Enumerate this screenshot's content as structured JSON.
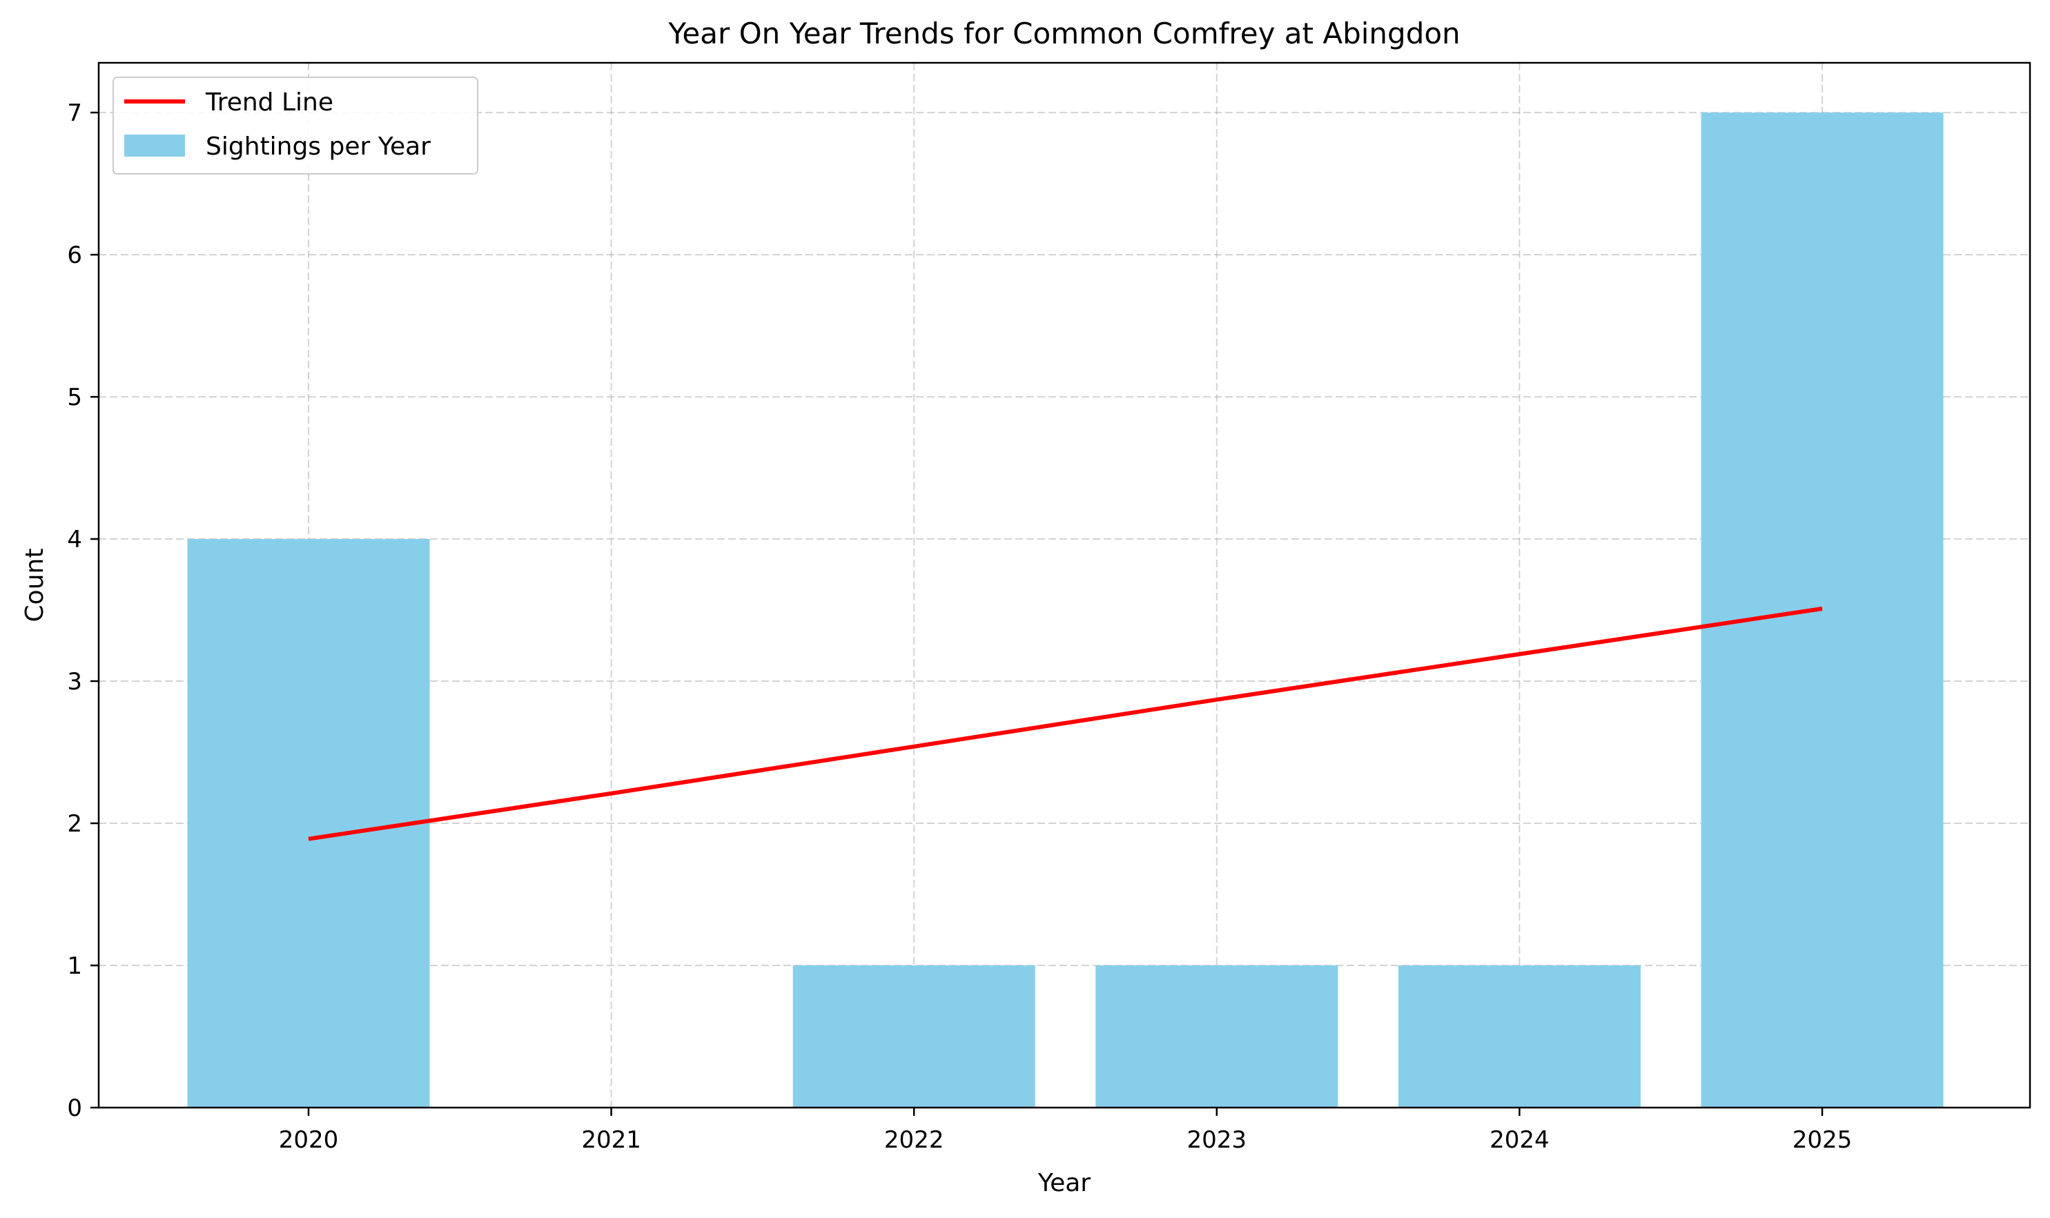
{
  "chart_data": {
    "type": "bar",
    "title": "Year On Year Trends for Common Comfrey at Abingdon",
    "xlabel": "Year",
    "ylabel": "Count",
    "categories": [
      "2020",
      "2021",
      "2022",
      "2023",
      "2024",
      "2025"
    ],
    "series": [
      {
        "name": "Sightings per Year",
        "type": "bar",
        "values": [
          4,
          0,
          1,
          1,
          1,
          7
        ],
        "color": "#87ceeb"
      },
      {
        "name": "Trend Line",
        "type": "line",
        "values": [
          1.89,
          2.21,
          2.54,
          2.87,
          3.19,
          3.51
        ],
        "color": "#ff0000"
      }
    ],
    "yticks": [
      0,
      1,
      2,
      3,
      4,
      5,
      6,
      7
    ],
    "ylim": [
      0,
      7.35
    ],
    "grid": true,
    "legend_position": "top-left"
  }
}
